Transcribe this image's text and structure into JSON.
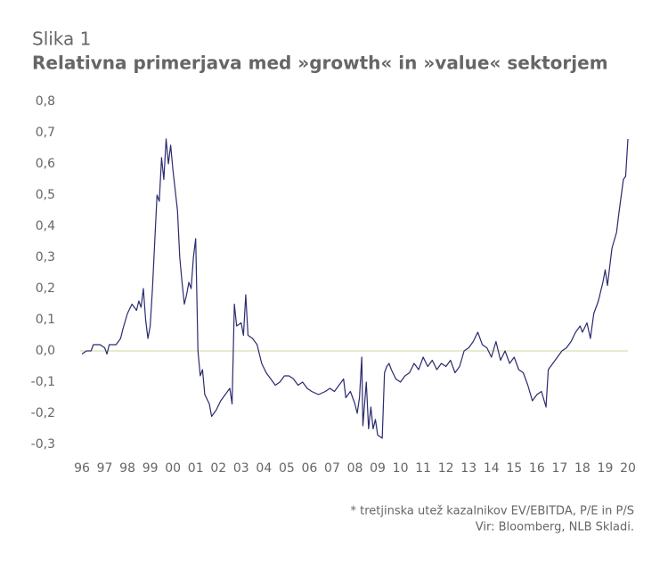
{
  "chart_data": {
    "type": "line",
    "title": "Slika 1",
    "subtitle": "Relativna primerjava med »growth« in »value« sektorjem",
    "notes": [
      "* tretjinska utež kazalnikov EV/EBITDA, P/E in P/S",
      "Vir: Bloomberg, NLB Skladi."
    ],
    "x": [
      1996.0,
      1996.2,
      1996.4,
      1996.5,
      1996.8,
      1997.0,
      1997.1,
      1997.2,
      1997.5,
      1997.7,
      1997.8,
      1998.0,
      1998.2,
      1998.4,
      1998.5,
      1998.6,
      1998.7,
      1998.8,
      1998.9,
      1999.0,
      1999.1,
      1999.2,
      1999.3,
      1999.4,
      1999.5,
      1999.6,
      1999.7,
      1999.8,
      1999.9,
      2000.0,
      2000.2,
      2000.3,
      2000.4,
      2000.5,
      2000.6,
      2000.7,
      2000.8,
      2000.9,
      2001.0,
      2001.1,
      2001.2,
      2001.3,
      2001.4,
      2001.6,
      2001.7,
      2001.9,
      2002.1,
      2002.3,
      2002.5,
      2002.6,
      2002.7,
      2002.8,
      2003.0,
      2003.1,
      2003.2,
      2003.3,
      2003.5,
      2003.7,
      2003.9,
      2004.1,
      2004.3,
      2004.5,
      2004.7,
      2004.9,
      2005.1,
      2005.3,
      2005.5,
      2005.7,
      2005.9,
      2006.1,
      2006.4,
      2006.7,
      2006.9,
      2007.1,
      2007.3,
      2007.5,
      2007.6,
      2007.8,
      2008.0,
      2008.1,
      2008.2,
      2008.3,
      2008.35,
      2008.5,
      2008.6,
      2008.7,
      2008.8,
      2008.9,
      2009.0,
      2009.2,
      2009.3,
      2009.4,
      2009.5,
      2009.6,
      2009.8,
      2010.0,
      2010.2,
      2010.4,
      2010.6,
      2010.8,
      2011.0,
      2011.2,
      2011.4,
      2011.6,
      2011.8,
      2012.0,
      2012.2,
      2012.4,
      2012.6,
      2012.8,
      2013.0,
      2013.2,
      2013.4,
      2013.6,
      2013.8,
      2014.0,
      2014.2,
      2014.4,
      2014.6,
      2014.8,
      2015.0,
      2015.2,
      2015.4,
      2015.6,
      2015.8,
      2016.0,
      2016.2,
      2016.4,
      2016.5,
      2016.7,
      2016.9,
      2017.1,
      2017.3,
      2017.5,
      2017.7,
      2017.9,
      2018.0,
      2018.2,
      2018.35,
      2018.5,
      2018.7,
      2018.9,
      2019.0,
      2019.1,
      2019.3,
      2019.5,
      2019.6,
      2019.8,
      2019.9,
      2020.0
    ],
    "series": [
      {
        "color": "#2b2a6e",
        "values": [
          -0.01,
          0.0,
          0.0,
          0.02,
          0.02,
          0.01,
          -0.01,
          0.02,
          0.02,
          0.04,
          0.07,
          0.12,
          0.15,
          0.13,
          0.16,
          0.14,
          0.2,
          0.1,
          0.04,
          0.08,
          0.2,
          0.35,
          0.5,
          0.48,
          0.62,
          0.55,
          0.68,
          0.6,
          0.66,
          0.58,
          0.45,
          0.3,
          0.22,
          0.15,
          0.18,
          0.22,
          0.2,
          0.3,
          0.36,
          0.0,
          -0.08,
          -0.06,
          -0.14,
          -0.17,
          -0.21,
          -0.19,
          -0.16,
          -0.14,
          -0.12,
          -0.17,
          0.15,
          0.08,
          0.09,
          0.05,
          0.18,
          0.05,
          0.04,
          0.02,
          -0.04,
          -0.07,
          -0.09,
          -0.11,
          -0.1,
          -0.08,
          -0.08,
          -0.09,
          -0.11,
          -0.1,
          -0.12,
          -0.13,
          -0.14,
          -0.13,
          -0.12,
          -0.13,
          -0.11,
          -0.09,
          -0.15,
          -0.13,
          -0.17,
          -0.2,
          -0.15,
          -0.02,
          -0.24,
          -0.1,
          -0.25,
          -0.18,
          -0.25,
          -0.22,
          -0.27,
          -0.28,
          -0.07,
          -0.05,
          -0.04,
          -0.06,
          -0.09,
          -0.1,
          -0.08,
          -0.07,
          -0.04,
          -0.06,
          -0.02,
          -0.05,
          -0.03,
          -0.06,
          -0.04,
          -0.05,
          -0.03,
          -0.07,
          -0.05,
          0.0,
          0.01,
          0.03,
          0.06,
          0.02,
          0.01,
          -0.02,
          0.03,
          -0.03,
          0.0,
          -0.04,
          -0.02,
          -0.06,
          -0.07,
          -0.11,
          -0.16,
          -0.14,
          -0.13,
          -0.18,
          -0.06,
          -0.04,
          -0.02,
          0.0,
          0.01,
          0.03,
          0.06,
          0.08,
          0.06,
          0.09,
          0.04,
          0.12,
          0.16,
          0.22,
          0.26,
          0.21,
          0.33,
          0.38,
          0.44,
          0.55,
          0.56,
          0.68
        ]
      }
    ],
    "zero_line": {
      "value": 0,
      "color": "#c9d89c"
    },
    "xlim": [
      1996,
      2020
    ],
    "xticks": [
      {
        "value": 1996,
        "label": "96"
      },
      {
        "value": 1997,
        "label": "97"
      },
      {
        "value": 1998,
        "label": "98"
      },
      {
        "value": 1999,
        "label": "99"
      },
      {
        "value": 2000,
        "label": "00"
      },
      {
        "value": 2001,
        "label": "01"
      },
      {
        "value": 2002,
        "label": "02"
      },
      {
        "value": 2003,
        "label": "03"
      },
      {
        "value": 2004,
        "label": "04"
      },
      {
        "value": 2005,
        "label": "05"
      },
      {
        "value": 2006,
        "label": "06"
      },
      {
        "value": 2007,
        "label": "07"
      },
      {
        "value": 2008,
        "label": "08"
      },
      {
        "value": 2009,
        "label": "09"
      },
      {
        "value": 2010,
        "label": "10"
      },
      {
        "value": 2011,
        "label": "11"
      },
      {
        "value": 2012,
        "label": "12"
      },
      {
        "value": 2013,
        "label": "13"
      },
      {
        "value": 2014,
        "label": "14"
      },
      {
        "value": 2015,
        "label": "15"
      },
      {
        "value": 2016,
        "label": "16"
      },
      {
        "value": 2017,
        "label": "17"
      },
      {
        "value": 2018,
        "label": "18"
      },
      {
        "value": 2019,
        "label": "19"
      },
      {
        "value": 2020,
        "label": "20"
      }
    ],
    "ylim": [
      -0.3,
      0.8
    ],
    "yticks": [
      {
        "value": -0.3,
        "label": "-0,3"
      },
      {
        "value": -0.2,
        "label": "-0,2"
      },
      {
        "value": -0.1,
        "label": "-0,1"
      },
      {
        "value": 0,
        "label": "0,0"
      },
      {
        "value": 0.1,
        "label": "0,1"
      },
      {
        "value": 0.2,
        "label": "0,2"
      },
      {
        "value": 0.3,
        "label": "0,3"
      },
      {
        "value": 0.4,
        "label": "0,4"
      },
      {
        "value": 0.5,
        "label": "0,5"
      },
      {
        "value": 0.6,
        "label": "0,6"
      },
      {
        "value": 0.7,
        "label": "0,7"
      },
      {
        "value": 0.8,
        "label": "0,8"
      }
    ]
  }
}
